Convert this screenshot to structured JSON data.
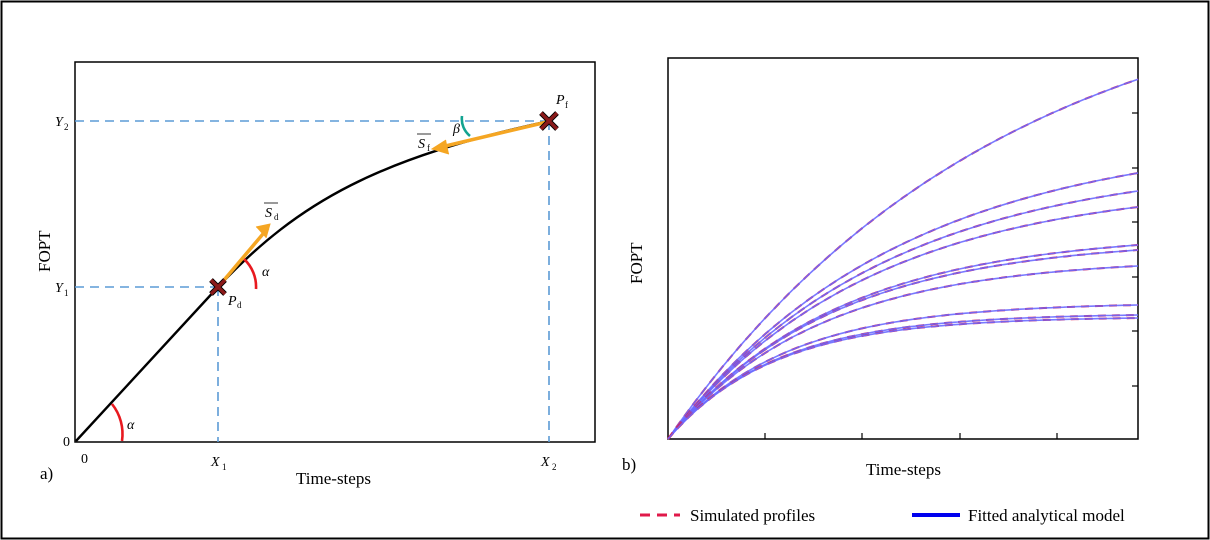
{
  "panel_a": {
    "panel_label": "a)",
    "x_axis_title": "Time-steps",
    "y_axis_title": "FOPT",
    "origin_x_label": "0",
    "origin_y_label": "0",
    "x1": {
      "main": "X",
      "sub": "1"
    },
    "x2": {
      "main": "X",
      "sub": "2"
    },
    "y1": {
      "main": "Y",
      "sub": "1"
    },
    "y2": {
      "main": "Y",
      "sub": "2"
    },
    "pd": {
      "main": "P",
      "sub": "d"
    },
    "pf": {
      "main": "P",
      "sub": "f"
    },
    "sd": {
      "main": "S",
      "sub": "d"
    },
    "sf": {
      "main": "S",
      "sub": "f"
    },
    "alpha": "α",
    "beta": "β"
  },
  "panel_b": {
    "panel_label": "b)",
    "x_axis_title": "Time-steps",
    "y_axis_title": "FOPT"
  },
  "legend": {
    "simulated": "Simulated profiles",
    "fitted": "Fitted analytical model"
  },
  "colors": {
    "guide": "#5b9bd5",
    "arrow": "#f5a623",
    "alpha_arc": "#e8191f",
    "beta_arc": "#12a390",
    "simulated": "#e0194a",
    "fitted": "#0000ee"
  }
}
